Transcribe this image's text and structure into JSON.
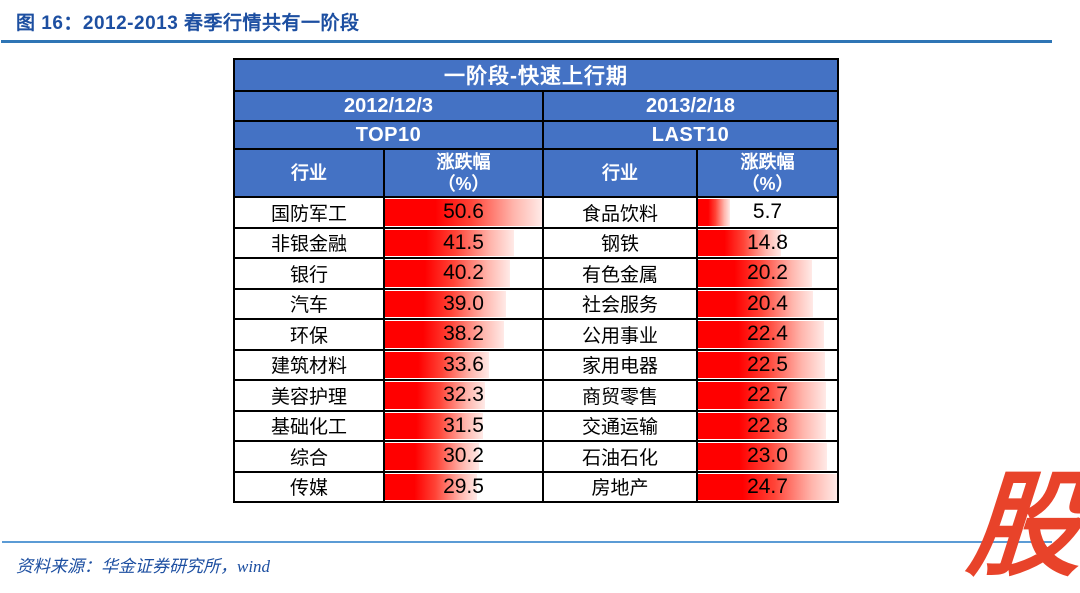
{
  "page": {
    "figure_title": "图 16：2012-2013 春季行情共有一阶段",
    "source_text": "资料来源：华金证券研究所，wind",
    "logo_text": "股"
  },
  "colors": {
    "title_blue": "#1D4FA1",
    "top_rule_blue": "#2E75B5",
    "bottom_rule_blue": "#5B9BD5",
    "header_blue": "#4472C4",
    "bar_red": "#FF0000",
    "logo_red": "#E8432A"
  },
  "chart_data": {
    "type": "table",
    "title": "一阶段-快速上行期",
    "header": {
      "industry_label": "行业",
      "change_label_line1": "涨跌幅",
      "change_label_line2": "（%）"
    },
    "groups": [
      {
        "date": "2012/12/3",
        "rank_label": "TOP10",
        "bar_max": 50.6,
        "rows": [
          {
            "industry": "国防军工",
            "value": "50.6"
          },
          {
            "industry": "非银金融",
            "value": "41.5"
          },
          {
            "industry": "银行",
            "value": "40.2"
          },
          {
            "industry": "汽车",
            "value": "39.0"
          },
          {
            "industry": "环保",
            "value": "38.2"
          },
          {
            "industry": "建筑材料",
            "value": "33.6"
          },
          {
            "industry": "美容护理",
            "value": "32.3"
          },
          {
            "industry": "基础化工",
            "value": "31.5"
          },
          {
            "industry": "综合",
            "value": "30.2"
          },
          {
            "industry": "传媒",
            "value": "29.5"
          }
        ]
      },
      {
        "date": "2013/2/18",
        "rank_label": "LAST10",
        "bar_max": 24.7,
        "rows": [
          {
            "industry": "食品饮料",
            "value": "5.7"
          },
          {
            "industry": "钢铁",
            "value": "14.8"
          },
          {
            "industry": "有色金属",
            "value": "20.2"
          },
          {
            "industry": "社会服务",
            "value": "20.4"
          },
          {
            "industry": "公用事业",
            "value": "22.4"
          },
          {
            "industry": "家用电器",
            "value": "22.5"
          },
          {
            "industry": "商贸零售",
            "value": "22.7"
          },
          {
            "industry": "交通运输",
            "value": "22.8"
          },
          {
            "industry": "石油石化",
            "value": "23.0"
          },
          {
            "industry": "房地产",
            "value": "24.7"
          }
        ]
      }
    ]
  }
}
